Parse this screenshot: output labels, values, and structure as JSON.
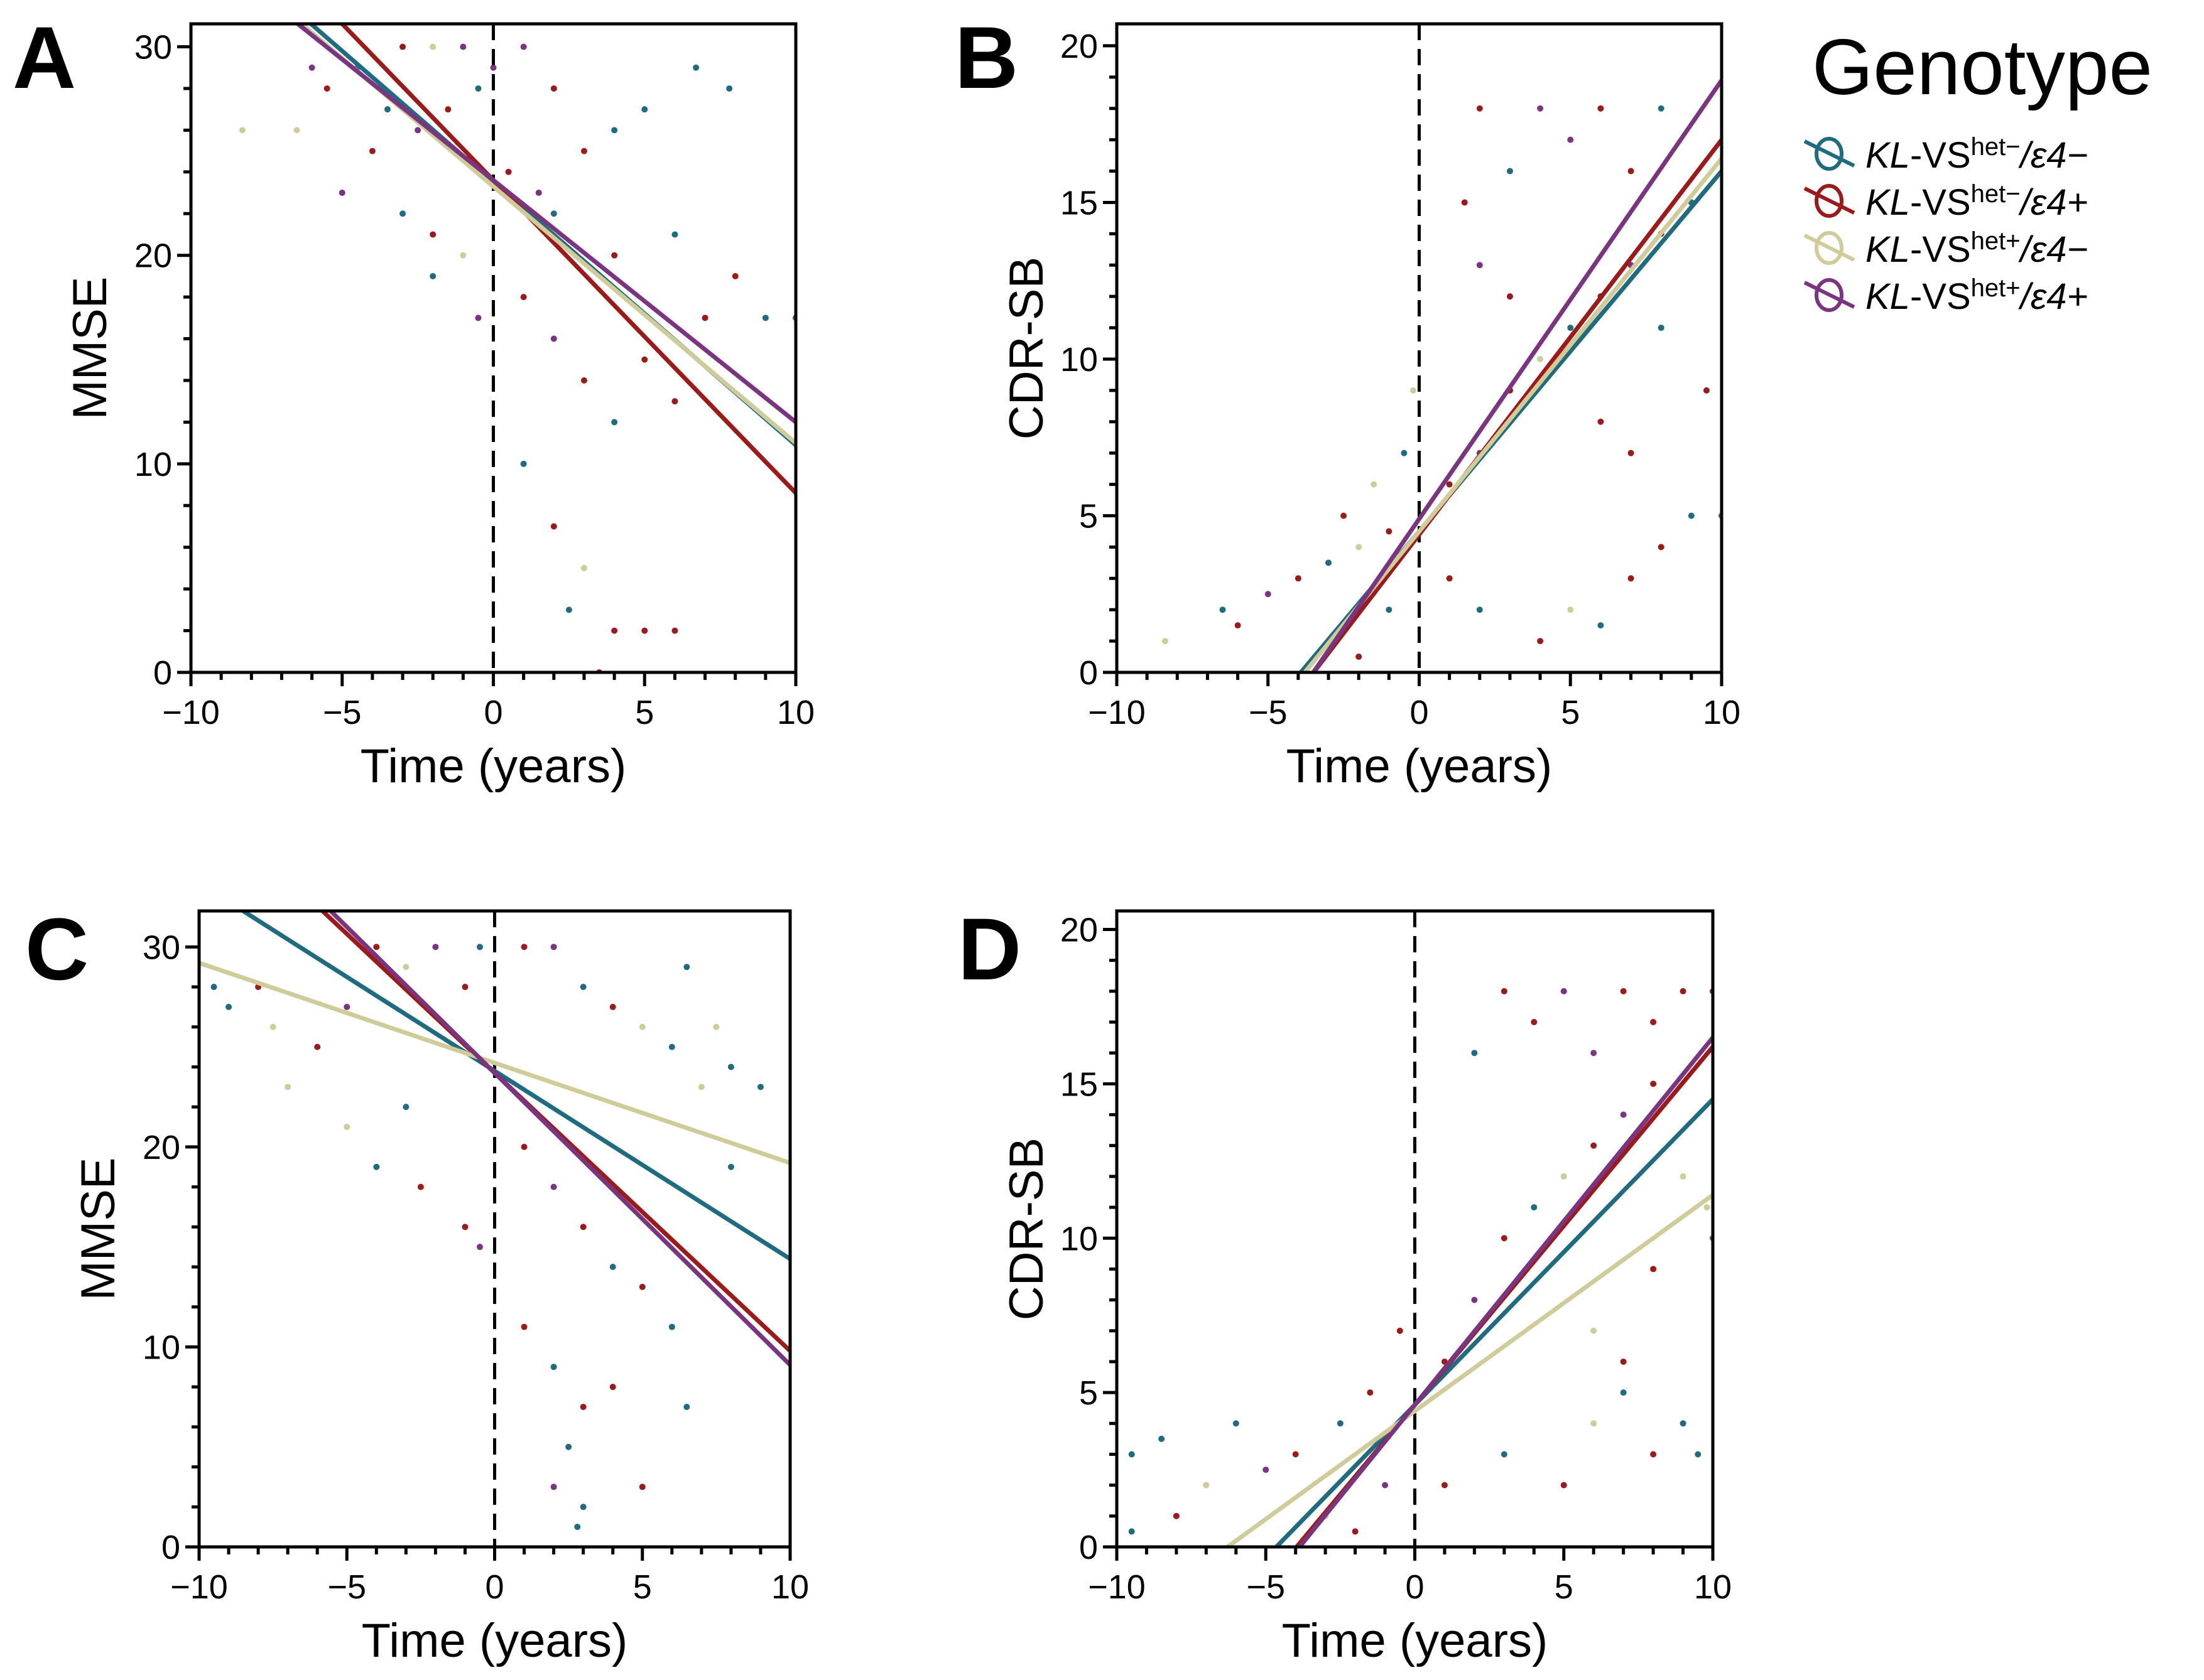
{
  "colors": {
    "KL-VShet-/e4-": "#1f6b80",
    "KL-VShet-/e4+": "#9b1b1b",
    "KL-VShet+/e4-": "#cfcc9a",
    "KL-VShet+/e4+": "#7b3580"
  },
  "legend": {
    "title": "Genotype",
    "items": [
      {
        "prefix": "KL",
        "mid": "-VS",
        "sup": "het−",
        "slash": "/",
        "eps": "ε4−",
        "color": "#1f6b80"
      },
      {
        "prefix": "KL",
        "mid": "-VS",
        "sup": "het−",
        "slash": "/",
        "eps": "ε4+",
        "color": "#9b1b1b"
      },
      {
        "prefix": "KL",
        "mid": "-VS",
        "sup": "het+",
        "slash": "/",
        "eps": "ε4−",
        "color": "#cfcc9a"
      },
      {
        "prefix": "KL",
        "mid": "-VS",
        "sup": "het+",
        "slash": "/",
        "eps": "ε4+",
        "color": "#7b3580"
      }
    ]
  },
  "chart_data": [
    {
      "panel": "A",
      "type": "scatter",
      "xlabel": "Time (years)",
      "ylabel": "MMSE",
      "xlim": [
        -10,
        10
      ],
      "ylim": [
        0,
        31.1
      ],
      "xticks": [
        -10,
        -5,
        0,
        5,
        10
      ],
      "xtick_labels": [
        "−10",
        "−5",
        "0",
        "5",
        "10"
      ],
      "yticks": [
        0,
        10,
        20,
        30
      ],
      "ytick_labels": [
        "0",
        "10",
        "20",
        "30"
      ],
      "reference_line_x": 0,
      "fit_lines": [
        {
          "group": 0,
          "intercept": 23.5,
          "slope": -1.26
        },
        {
          "group": 1,
          "intercept": 23.6,
          "slope": -1.5
        },
        {
          "group": 2,
          "intercept": 23.3,
          "slope": -1.23
        },
        {
          "group": 3,
          "intercept": 23.6,
          "slope": -1.16
        }
      ],
      "points": [
        [
          -6,
          29,
          3
        ],
        [
          -5.5,
          28,
          1
        ],
        [
          -4.5,
          29,
          0
        ],
        [
          -3,
          30,
          1
        ],
        [
          -2,
          30,
          2
        ],
        [
          -1,
          30,
          3
        ],
        [
          -8.3,
          26,
          2
        ],
        [
          -6.5,
          26,
          2
        ],
        [
          -4,
          25,
          1
        ],
        [
          -3.5,
          27,
          0
        ],
        [
          -2.5,
          26,
          3
        ],
        [
          -1.5,
          27,
          1
        ],
        [
          -0.5,
          28,
          0
        ],
        [
          0,
          29,
          3
        ],
        [
          1,
          30,
          3
        ],
        [
          2,
          28,
          1
        ],
        [
          -5,
          23,
          3
        ],
        [
          -3,
          22,
          0
        ],
        [
          -2,
          21,
          1
        ],
        [
          -1,
          20,
          2
        ],
        [
          0.5,
          24,
          1
        ],
        [
          1.5,
          23,
          3
        ],
        [
          2,
          22,
          0
        ],
        [
          3,
          25,
          1
        ],
        [
          4,
          26,
          0
        ],
        [
          5,
          27,
          0
        ],
        [
          6.7,
          29,
          0
        ],
        [
          7.8,
          28,
          0
        ],
        [
          1,
          18,
          1
        ],
        [
          2,
          16,
          3
        ],
        [
          3,
          14,
          1
        ],
        [
          4,
          12,
          0
        ],
        [
          5,
          15,
          1
        ],
        [
          6,
          13,
          1
        ],
        [
          1,
          10,
          0
        ],
        [
          2,
          7,
          1
        ],
        [
          3,
          5,
          2
        ],
        [
          2.5,
          3,
          0
        ],
        [
          4,
          2,
          1
        ],
        [
          5,
          2,
          1
        ],
        [
          6,
          2,
          1
        ],
        [
          3.5,
          0,
          1
        ],
        [
          7,
          17,
          1
        ],
        [
          9,
          17,
          0
        ],
        [
          10,
          17,
          0
        ],
        [
          -2,
          19,
          0
        ],
        [
          -0.5,
          17,
          3
        ],
        [
          4,
          20,
          1
        ],
        [
          6,
          21,
          0
        ],
        [
          8,
          19,
          1
        ]
      ]
    },
    {
      "panel": "B",
      "type": "scatter",
      "xlabel": "Time (years)",
      "ylabel": "CDR-SB",
      "xlim": [
        -10,
        10
      ],
      "ylim": [
        0,
        20.7
      ],
      "xticks": [
        -10,
        -5,
        0,
        5,
        10
      ],
      "xtick_labels": [
        "−10",
        "−5",
        "0",
        "5",
        "10"
      ],
      "yticks": [
        0,
        5,
        10,
        15,
        20
      ],
      "ytick_labels": [
        "0",
        "5",
        "10",
        "15",
        "20"
      ],
      "reference_line_x": 0,
      "fit_lines": [
        {
          "group": 0,
          "intercept": 4.5,
          "slope": 1.15
        },
        {
          "group": 1,
          "intercept": 4.4,
          "slope": 1.26
        },
        {
          "group": 2,
          "intercept": 4.5,
          "slope": 1.19
        },
        {
          "group": 3,
          "intercept": 4.9,
          "slope": 1.4
        }
      ],
      "points": [
        [
          -8.4,
          1,
          2
        ],
        [
          -6.5,
          2,
          0
        ],
        [
          -6,
          1.5,
          1
        ],
        [
          -5,
          2.5,
          3
        ],
        [
          -4,
          3,
          1
        ],
        [
          -3,
          3.5,
          0
        ],
        [
          -2,
          4,
          2
        ],
        [
          -1,
          4.5,
          1
        ],
        [
          -3,
          1,
          3
        ],
        [
          -2,
          0.5,
          1
        ],
        [
          -1,
          2,
          0
        ],
        [
          -0.5,
          7,
          0
        ],
        [
          -1.5,
          6,
          2
        ],
        [
          -2.5,
          5,
          1
        ],
        [
          1,
          6,
          1
        ],
        [
          2,
          7,
          3
        ],
        [
          3,
          9,
          1
        ],
        [
          4,
          10,
          2
        ],
        [
          5,
          11,
          0
        ],
        [
          6,
          12,
          1
        ],
        [
          7,
          13,
          3
        ],
        [
          8,
          14,
          1
        ],
        [
          2,
          18,
          1
        ],
        [
          4,
          18,
          3
        ],
        [
          6,
          18,
          1
        ],
        [
          8,
          18,
          0
        ],
        [
          1.5,
          15,
          1
        ],
        [
          3,
          16,
          0
        ],
        [
          5,
          17,
          3
        ],
        [
          7,
          16,
          1
        ],
        [
          9,
          15,
          0
        ],
        [
          1,
          3,
          1
        ],
        [
          2,
          2,
          0
        ],
        [
          4,
          1,
          1
        ],
        [
          5,
          2,
          2
        ],
        [
          6,
          1.5,
          0
        ],
        [
          7,
          3,
          1
        ],
        [
          8,
          4,
          1
        ],
        [
          9,
          5,
          0
        ],
        [
          10,
          5,
          0
        ],
        [
          9.5,
          9,
          1
        ],
        [
          -0.2,
          9,
          2
        ],
        [
          3,
          12,
          1
        ],
        [
          2,
          13,
          3
        ],
        [
          6,
          8,
          1
        ],
        [
          7,
          7,
          1
        ],
        [
          8,
          11,
          0
        ]
      ]
    },
    {
      "panel": "C",
      "type": "scatter",
      "xlabel": "Time (years)",
      "ylabel": "MMSE",
      "xlim": [
        -10,
        10
      ],
      "ylim": [
        0,
        31.8
      ],
      "xticks": [
        -10,
        -5,
        0,
        5,
        10
      ],
      "xtick_labels": [
        "−10",
        "−5",
        "0",
        "5",
        "10"
      ],
      "yticks": [
        0,
        10,
        20,
        30
      ],
      "ytick_labels": [
        "0",
        "10",
        "20",
        "30"
      ],
      "reference_line_x": 0,
      "fit_lines": [
        {
          "group": 0,
          "intercept": 23.8,
          "slope": -0.94
        },
        {
          "group": 1,
          "intercept": 23.7,
          "slope": -1.39
        },
        {
          "group": 2,
          "intercept": 24.2,
          "slope": -0.5
        },
        {
          "group": 3,
          "intercept": 23.7,
          "slope": -1.46
        }
      ],
      "points": [
        [
          -9.5,
          28,
          0
        ],
        [
          -9,
          27,
          0
        ],
        [
          -8,
          28,
          1
        ],
        [
          -7.5,
          26,
          2
        ],
        [
          -7,
          23,
          2
        ],
        [
          -6,
          25,
          1
        ],
        [
          -5,
          27,
          3
        ],
        [
          -4,
          30,
          1
        ],
        [
          -3,
          29,
          2
        ],
        [
          -2,
          30,
          3
        ],
        [
          -1,
          28,
          1
        ],
        [
          -0.5,
          30,
          0
        ],
        [
          -3,
          22,
          0
        ],
        [
          -4,
          19,
          0
        ],
        [
          -2.5,
          18,
          1
        ],
        [
          -5,
          21,
          2
        ],
        [
          -1,
          16,
          1
        ],
        [
          -0.5,
          15,
          3
        ],
        [
          1,
          30,
          1
        ],
        [
          2,
          30,
          3
        ],
        [
          3,
          28,
          0
        ],
        [
          4,
          27,
          1
        ],
        [
          5,
          26,
          2
        ],
        [
          6,
          25,
          0
        ],
        [
          7.5,
          26,
          2
        ],
        [
          8,
          24,
          0
        ],
        [
          6.5,
          29,
          0
        ],
        [
          7,
          23,
          2
        ],
        [
          1,
          20,
          1
        ],
        [
          2,
          18,
          3
        ],
        [
          3,
          16,
          1
        ],
        [
          4,
          14,
          0
        ],
        [
          5,
          13,
          1
        ],
        [
          6,
          11,
          0
        ],
        [
          1,
          11,
          1
        ],
        [
          2,
          9,
          0
        ],
        [
          3,
          7,
          1
        ],
        [
          2.5,
          5,
          0
        ],
        [
          2,
          3,
          3
        ],
        [
          3,
          2,
          0
        ],
        [
          2.8,
          1,
          0
        ],
        [
          4,
          8,
          1
        ],
        [
          5,
          3,
          1
        ],
        [
          6.5,
          7,
          0
        ],
        [
          8,
          19,
          0
        ],
        [
          9,
          23,
          0
        ]
      ]
    },
    {
      "panel": "D",
      "type": "scatter",
      "xlabel": "Time (years)",
      "ylabel": "CDR-SB",
      "xlim": [
        -10,
        10
      ],
      "ylim": [
        0,
        20.6
      ],
      "xticks": [
        -10,
        -5,
        0,
        5,
        10
      ],
      "xtick_labels": [
        "−10",
        "−5",
        "0",
        "5",
        "10"
      ],
      "yticks": [
        0,
        5,
        10,
        15,
        20
      ],
      "ytick_labels": [
        "0",
        "5",
        "10",
        "15",
        "20"
      ],
      "reference_line_x": 0,
      "fit_lines": [
        {
          "group": 0,
          "intercept": 4.6,
          "slope": 0.99
        },
        {
          "group": 1,
          "intercept": 4.6,
          "slope": 1.16
        },
        {
          "group": 2,
          "intercept": 4.4,
          "slope": 0.7
        },
        {
          "group": 3,
          "intercept": 4.6,
          "slope": 1.19
        }
      ],
      "points": [
        [
          -9.5,
          0.5,
          0
        ],
        [
          -9.5,
          3,
          0
        ],
        [
          -8.5,
          3.5,
          0
        ],
        [
          -8,
          1,
          1
        ],
        [
          -7,
          2,
          2
        ],
        [
          -6,
          4,
          0
        ],
        [
          -5,
          2.5,
          3
        ],
        [
          -4,
          3,
          1
        ],
        [
          -3,
          1,
          2
        ],
        [
          -2,
          0.5,
          1
        ],
        [
          -1,
          2,
          3
        ],
        [
          -2.5,
          4,
          0
        ],
        [
          -1.5,
          5,
          1
        ],
        [
          -0.5,
          7,
          1
        ],
        [
          1,
          6,
          1
        ],
        [
          2,
          8,
          3
        ],
        [
          3,
          10,
          1
        ],
        [
          4,
          11,
          0
        ],
        [
          5,
          12,
          2
        ],
        [
          6,
          13,
          1
        ],
        [
          7,
          14,
          3
        ],
        [
          8,
          15,
          1
        ],
        [
          3,
          18,
          1
        ],
        [
          5,
          18,
          3
        ],
        [
          7,
          18,
          1
        ],
        [
          9,
          18,
          1
        ],
        [
          10,
          18,
          1
        ],
        [
          2,
          16,
          0
        ],
        [
          4,
          17,
          1
        ],
        [
          6,
          16,
          3
        ],
        [
          8,
          17,
          1
        ],
        [
          1,
          2,
          1
        ],
        [
          3,
          3,
          0
        ],
        [
          5,
          2,
          1
        ],
        [
          6,
          4,
          2
        ],
        [
          7,
          5,
          0
        ],
        [
          8,
          3,
          1
        ],
        [
          9,
          4,
          0
        ],
        [
          9.5,
          3,
          0
        ],
        [
          10,
          10,
          0
        ],
        [
          9,
          12,
          2
        ],
        [
          8,
          9,
          1
        ],
        [
          7,
          6,
          1
        ],
        [
          6,
          7,
          2
        ],
        [
          9.8,
          11,
          2
        ]
      ]
    }
  ]
}
